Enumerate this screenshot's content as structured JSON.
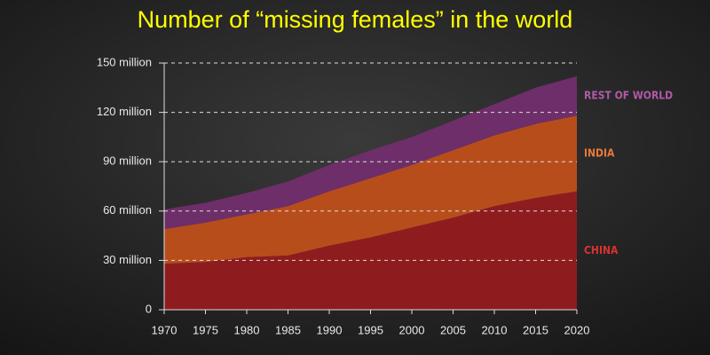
{
  "chart_data": {
    "type": "stacked-area",
    "title": "Number of “missing females” in the world",
    "x": [
      1970,
      1975,
      1980,
      1985,
      1990,
      1995,
      2000,
      2005,
      2010,
      2015,
      2020
    ],
    "series": [
      {
        "name": "CHINA",
        "color": "#8e1c1f",
        "label_color": "#d8332e",
        "values": [
          28,
          29,
          32,
          33,
          39,
          44,
          50,
          56,
          63,
          68,
          72
        ]
      },
      {
        "name": "INDIA",
        "color": "#b84d1c",
        "label_color": "#e87a3a",
        "values": [
          21,
          24,
          26,
          30,
          33,
          36,
          38,
          41,
          43,
          45,
          46
        ]
      },
      {
        "name": "REST OF WORLD",
        "color": "#6e2e6a",
        "label_color": "#b05aa8",
        "values": [
          12,
          12,
          13,
          15,
          16,
          17,
          17,
          18,
          19,
          22,
          24
        ]
      }
    ],
    "xlim": [
      1970,
      2020
    ],
    "xticks": [
      1970,
      1975,
      1980,
      1985,
      1990,
      1995,
      2000,
      2005,
      2010,
      2015,
      2020
    ],
    "ylim": [
      0,
      150
    ],
    "yticks": [
      0,
      {
        "value": 30,
        "label": "30 million"
      },
      {
        "value": 60,
        "label": "60 million"
      },
      {
        "value": 90,
        "label": "90 million"
      },
      {
        "value": 120,
        "label": "120 million"
      },
      {
        "value": 150,
        "label": "150 million"
      }
    ],
    "grid": true
  }
}
